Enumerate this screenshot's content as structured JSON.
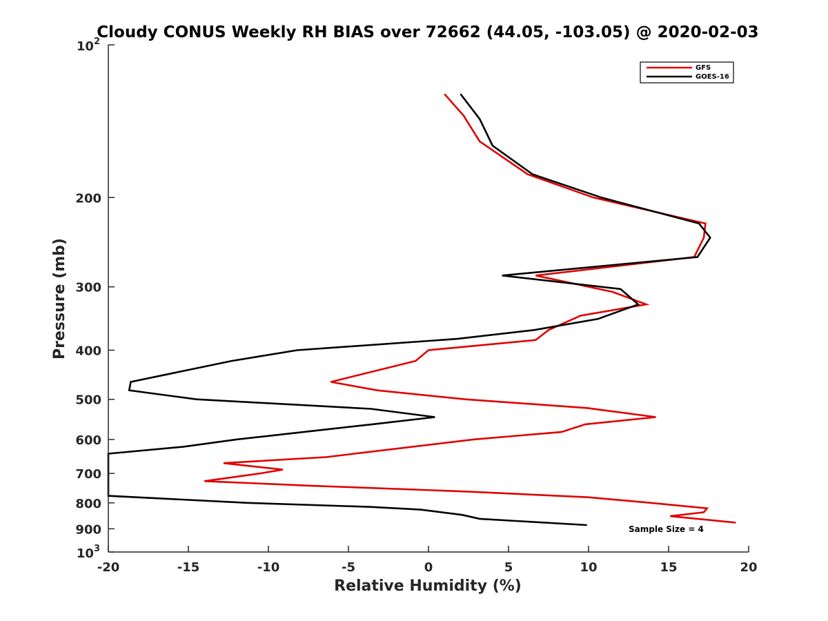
{
  "chart_data": {
    "type": "line",
    "title": "Cloudy CONUS Weekly RH BIAS over 72662 (44.05, -103.05) @ 2020-02-03",
    "xlabel": "Relative Humidity (%)",
    "ylabel": "Pressure (mb)",
    "xlim": [
      -20,
      20
    ],
    "ylim": [
      100,
      1000
    ],
    "y_scale": "log",
    "y_reversed": true,
    "x_ticks": [
      -20,
      -15,
      -10,
      -5,
      0,
      5,
      10,
      15,
      20
    ],
    "x_tick_labels": [
      "-20",
      "-15",
      "-10",
      "-5",
      "0",
      "5",
      "10",
      "15",
      "20"
    ],
    "y_ticks": [
      200,
      300,
      400,
      500,
      600,
      700,
      800,
      900
    ],
    "y_tick_labels": [
      "200",
      "300",
      "400",
      "500",
      "600",
      "700",
      "800",
      "900"
    ],
    "y_decade_ticks": [
      {
        "value": 100,
        "base": "10",
        "exp": "2"
      },
      {
        "value": 1000,
        "base": "10",
        "exp": "3"
      }
    ],
    "grid": false,
    "legend_position": "top-right",
    "annotation": "Sample Size = 4",
    "colors": {
      "GFS": "#e00000",
      "GOES-16": "#000000"
    },
    "series": [
      {
        "name": "GFS",
        "points": [
          [
            1.0,
            125
          ],
          [
            2.2,
            138
          ],
          [
            3.2,
            155
          ],
          [
            6.2,
            180
          ],
          [
            10.3,
            200
          ],
          [
            17.3,
            225
          ],
          [
            17.2,
            240
          ],
          [
            16.6,
            262
          ],
          [
            6.7,
            285
          ],
          [
            11.5,
            307
          ],
          [
            13.6,
            325
          ],
          [
            9.5,
            342
          ],
          [
            7.5,
            365
          ],
          [
            6.7,
            382
          ],
          [
            0.0,
            400
          ],
          [
            -0.8,
            420
          ],
          [
            -6.1,
            462
          ],
          [
            -3.2,
            480
          ],
          [
            2.3,
            500
          ],
          [
            9.9,
            520
          ],
          [
            14.2,
            542
          ],
          [
            9.8,
            560
          ],
          [
            8.3,
            580
          ],
          [
            2.8,
            600
          ],
          [
            -6.4,
            650
          ],
          [
            -12.8,
            668
          ],
          [
            -9.1,
            688
          ],
          [
            -10.5,
            700
          ],
          [
            -14.0,
            725
          ],
          [
            -7.4,
            740
          ],
          [
            2.4,
            760
          ],
          [
            10.0,
            780
          ],
          [
            13.9,
            800
          ],
          [
            17.4,
            820
          ],
          [
            17.2,
            835
          ],
          [
            15.1,
            850
          ],
          [
            19.2,
            875
          ]
        ]
      },
      {
        "name": "GOES-16",
        "points": [
          [
            2.0,
            125
          ],
          [
            3.2,
            140
          ],
          [
            4.0,
            158
          ],
          [
            6.5,
            180
          ],
          [
            10.8,
            200
          ],
          [
            16.9,
            225
          ],
          [
            17.6,
            240
          ],
          [
            16.8,
            262
          ],
          [
            4.6,
            285
          ],
          [
            12.0,
            303
          ],
          [
            13.1,
            325
          ],
          [
            10.6,
            347
          ],
          [
            6.6,
            365
          ],
          [
            1.8,
            380
          ],
          [
            -8.2,
            400
          ],
          [
            -12.3,
            420
          ],
          [
            -18.6,
            462
          ],
          [
            -18.7,
            480
          ],
          [
            -14.5,
            500
          ],
          [
            -3.6,
            522
          ],
          [
            0.4,
            542
          ],
          [
            -3.5,
            560
          ],
          [
            -7.8,
            580
          ],
          [
            -12.0,
            600
          ],
          [
            -15.3,
            620
          ],
          [
            -20.0,
            640
          ],
          [
            -20.0,
            775
          ],
          [
            -11.3,
            800
          ],
          [
            -3.6,
            815
          ],
          [
            -0.5,
            825
          ],
          [
            2.1,
            845
          ],
          [
            3.2,
            860
          ],
          [
            9.9,
            885
          ]
        ]
      }
    ]
  }
}
